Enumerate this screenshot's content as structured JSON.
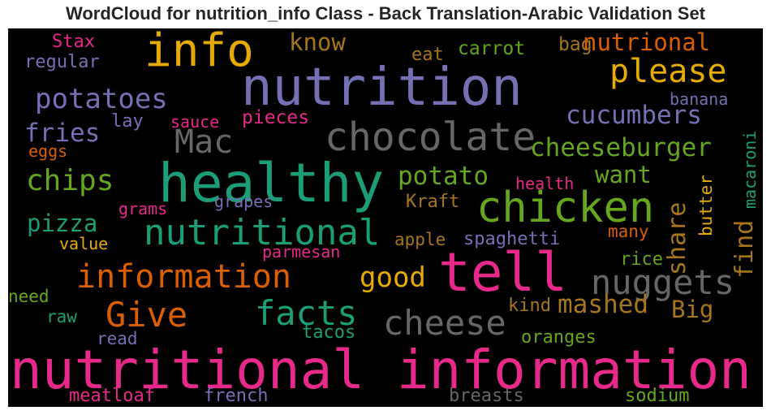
{
  "title": "WordCloud for nutrition_info Class - Back Translation-Arabic Validation Set",
  "colors": {
    "background": "#000000",
    "purple": "#7570b3",
    "pink": "#e7298a",
    "green": "#1b9e77",
    "lime": "#66a61e",
    "orange": "#d95f02",
    "gold": "#e6ab02",
    "brown": "#a6761d",
    "gray": "#666666"
  },
  "words": [
    {
      "text": "nutritional information",
      "color": "pink"
    },
    {
      "text": "healthy",
      "color": "green"
    },
    {
      "text": "nutrition",
      "color": "purple"
    },
    {
      "text": "tell",
      "color": "pink"
    },
    {
      "text": "info",
      "color": "gold"
    },
    {
      "text": "chicken",
      "color": "lime"
    },
    {
      "text": "chocolate",
      "color": "gray"
    },
    {
      "text": "nutritional",
      "color": "green"
    },
    {
      "text": "information",
      "color": "orange"
    },
    {
      "text": "facts",
      "color": "green"
    },
    {
      "text": "Give",
      "color": "orange"
    },
    {
      "text": "cheese",
      "color": "gray"
    },
    {
      "text": "nuggets",
      "color": "gray"
    },
    {
      "text": "please",
      "color": "gold"
    },
    {
      "text": "Mac",
      "color": "gray"
    },
    {
      "text": "chips",
      "color": "lime"
    },
    {
      "text": "potatoes",
      "color": "purple"
    },
    {
      "text": "cheeseburger",
      "color": "lime"
    },
    {
      "text": "cucumbers",
      "color": "purple"
    },
    {
      "text": "nutrional",
      "color": "orange"
    },
    {
      "text": "potato",
      "color": "lime"
    },
    {
      "text": "good",
      "color": "gold"
    },
    {
      "text": "mashed",
      "color": "brown"
    },
    {
      "text": "pizza",
      "color": "green"
    },
    {
      "text": "fries",
      "color": "purple"
    },
    {
      "text": "know",
      "color": "brown"
    },
    {
      "text": "want",
      "color": "lime"
    },
    {
      "text": "find",
      "color": "brown"
    },
    {
      "text": "share",
      "color": "brown"
    },
    {
      "text": "Big",
      "color": "brown"
    },
    {
      "text": "Stax",
      "color": "pink"
    },
    {
      "text": "regular",
      "color": "purple"
    },
    {
      "text": "eat",
      "color": "brown"
    },
    {
      "text": "carrot",
      "color": "lime"
    },
    {
      "text": "bag",
      "color": "brown"
    },
    {
      "text": "banana",
      "color": "purple"
    },
    {
      "text": "macaroni",
      "color": "green"
    },
    {
      "text": "lay",
      "color": "purple"
    },
    {
      "text": "sauce",
      "color": "pink"
    },
    {
      "text": "pieces",
      "color": "pink"
    },
    {
      "text": "eggs",
      "color": "orange"
    },
    {
      "text": "health",
      "color": "pink"
    },
    {
      "text": "grapes",
      "color": "purple"
    },
    {
      "text": "Kraft",
      "color": "brown"
    },
    {
      "text": "grams",
      "color": "pink"
    },
    {
      "text": "butter",
      "color": "gold"
    },
    {
      "text": "value",
      "color": "gold"
    },
    {
      "text": "apple",
      "color": "brown"
    },
    {
      "text": "spaghetti",
      "color": "purple"
    },
    {
      "text": "many",
      "color": "orange"
    },
    {
      "text": "parmesan",
      "color": "pink"
    },
    {
      "text": "rice",
      "color": "lime"
    },
    {
      "text": "need",
      "color": "lime"
    },
    {
      "text": "raw",
      "color": "green"
    },
    {
      "text": "kind",
      "color": "brown"
    },
    {
      "text": "read",
      "color": "purple"
    },
    {
      "text": "tacos",
      "color": "green"
    },
    {
      "text": "oranges",
      "color": "lime"
    },
    {
      "text": "meatloaf",
      "color": "pink"
    },
    {
      "text": "french",
      "color": "purple"
    },
    {
      "text": "breasts",
      "color": "gray"
    },
    {
      "text": "sodium",
      "color": "lime"
    }
  ]
}
